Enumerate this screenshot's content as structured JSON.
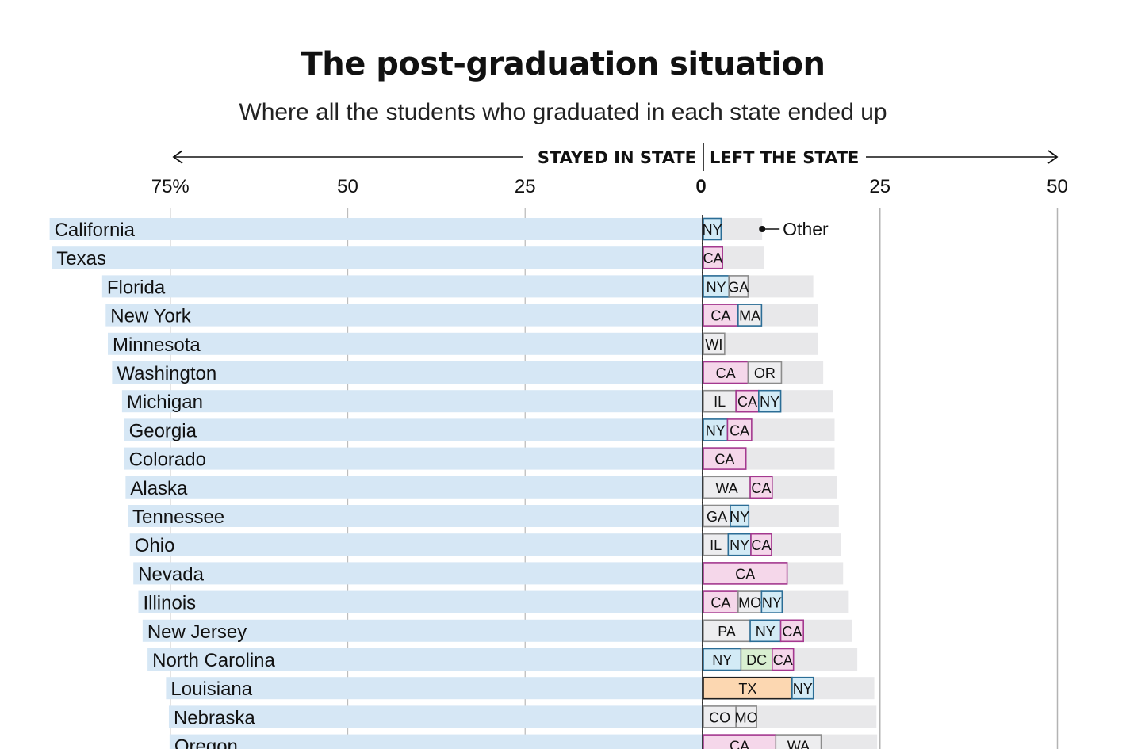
{
  "chart_data": {
    "type": "bar",
    "title": "The post-graduation situation",
    "subtitle": "Where all the students who graduated in each state ended up",
    "left_label": "STAYED IN STATE",
    "right_label": "LEFT THE STATE",
    "left_ticks": [
      "75%",
      "50",
      "25"
    ],
    "zero_tick": "0",
    "right_ticks": [
      "25",
      "50"
    ],
    "xlim_left": [
      0,
      75
    ],
    "xlim_right": [
      0,
      50
    ],
    "other_label": "Other",
    "colors": {
      "stayed": "#d6e7f5",
      "other": "#e8e8ea",
      "CA": "#f5d7ea",
      "NY": "#d3ebf6",
      "TX": "#fcd7b1",
      "DC": "#d9efd1",
      "default": "#ededef"
    },
    "border_colors": {
      "CA": "#a4388f",
      "NY": "#2b6d96",
      "MA": "#2b6d96",
      "TX": "#1f1f1f",
      "default": "#8c8c8c"
    },
    "rows": [
      {
        "state": "California",
        "stayed": 92.0,
        "left_total": 8.4,
        "dest": [
          {
            "code": "NY",
            "value": 2.5
          }
        ]
      },
      {
        "state": "Texas",
        "stayed": 91.7,
        "left_total": 8.7,
        "dest": [
          {
            "code": "CA",
            "value": 2.7
          }
        ]
      },
      {
        "state": "Florida",
        "stayed": 84.6,
        "left_total": 15.6,
        "dest": [
          {
            "code": "NY",
            "value": 3.6
          },
          {
            "code": "GA",
            "value": 2.7
          }
        ]
      },
      {
        "state": "New York",
        "stayed": 84.1,
        "left_total": 16.2,
        "dest": [
          {
            "code": "CA",
            "value": 4.9
          },
          {
            "code": "MA",
            "value": 3.3
          }
        ]
      },
      {
        "state": "Minnesota",
        "stayed": 83.8,
        "left_total": 16.3,
        "dest": [
          {
            "code": "WI",
            "value": 3.0
          }
        ]
      },
      {
        "state": "Washington",
        "stayed": 83.2,
        "left_total": 17.0,
        "dest": [
          {
            "code": "CA",
            "value": 6.3
          },
          {
            "code": "OR",
            "value": 4.7
          }
        ]
      },
      {
        "state": "Michigan",
        "stayed": 81.8,
        "left_total": 18.4,
        "dest": [
          {
            "code": "IL",
            "value": 4.6
          },
          {
            "code": "CA",
            "value": 3.2
          },
          {
            "code": "NY",
            "value": 3.1
          }
        ]
      },
      {
        "state": "Georgia",
        "stayed": 81.5,
        "left_total": 18.6,
        "dest": [
          {
            "code": "NY",
            "value": 3.4
          },
          {
            "code": "CA",
            "value": 3.4
          }
        ]
      },
      {
        "state": "Colorado",
        "stayed": 81.5,
        "left_total": 18.6,
        "dest": [
          {
            "code": "CA",
            "value": 6.0
          }
        ]
      },
      {
        "state": "Alaska",
        "stayed": 81.3,
        "left_total": 18.9,
        "dest": [
          {
            "code": "WA",
            "value": 6.6
          },
          {
            "code": "CA",
            "value": 3.1
          }
        ]
      },
      {
        "state": "Tennessee",
        "stayed": 81.0,
        "left_total": 19.2,
        "dest": [
          {
            "code": "GA",
            "value": 3.8
          },
          {
            "code": "NY",
            "value": 2.6
          }
        ]
      },
      {
        "state": "Ohio",
        "stayed": 80.7,
        "left_total": 19.5,
        "dest": [
          {
            "code": "IL",
            "value": 3.5
          },
          {
            "code": "NY",
            "value": 3.2
          },
          {
            "code": "CA",
            "value": 2.9
          }
        ]
      },
      {
        "state": "Nevada",
        "stayed": 80.2,
        "left_total": 19.8,
        "dest": [
          {
            "code": "CA",
            "value": 11.8
          }
        ]
      },
      {
        "state": "Illinois",
        "stayed": 79.5,
        "left_total": 20.6,
        "dest": [
          {
            "code": "CA",
            "value": 4.9
          },
          {
            "code": "MO",
            "value": 3.3
          },
          {
            "code": "NY",
            "value": 2.9
          }
        ]
      },
      {
        "state": "New Jersey",
        "stayed": 78.9,
        "left_total": 21.1,
        "dest": [
          {
            "code": "PA",
            "value": 6.6
          },
          {
            "code": "NY",
            "value": 4.3
          },
          {
            "code": "CA",
            "value": 3.2
          }
        ]
      },
      {
        "state": "North Carolina",
        "stayed": 78.2,
        "left_total": 21.8,
        "dest": [
          {
            "code": "NY",
            "value": 5.3
          },
          {
            "code": "DC",
            "value": 4.4
          },
          {
            "code": "CA",
            "value": 3.0
          }
        ]
      },
      {
        "state": "Louisiana",
        "stayed": 75.6,
        "left_total": 24.2,
        "dest": [
          {
            "code": "TX",
            "value": 12.5
          },
          {
            "code": "NY",
            "value": 3.0
          }
        ]
      },
      {
        "state": "Nebraska",
        "stayed": 75.2,
        "left_total": 24.5,
        "dest": [
          {
            "code": "CO",
            "value": 4.6
          },
          {
            "code": "MO",
            "value": 2.9
          }
        ]
      },
      {
        "state": "Oregon",
        "stayed": 75.1,
        "left_total": 24.6,
        "dest": [
          {
            "code": "CA",
            "value": 10.2
          },
          {
            "code": "WA",
            "value": 6.4
          }
        ]
      }
    ]
  }
}
